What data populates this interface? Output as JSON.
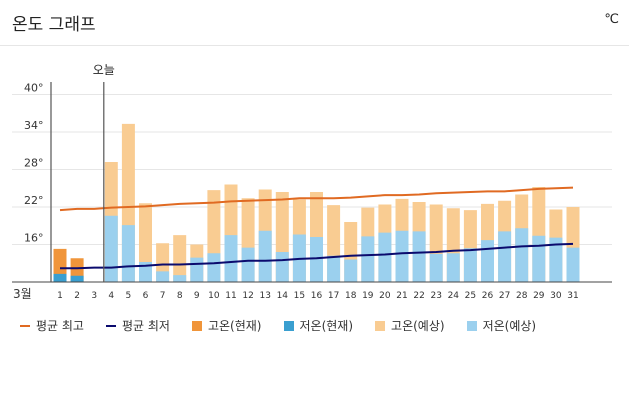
{
  "header": {
    "title": "온도 그래프",
    "unit": "℃"
  },
  "colors": {
    "avg_high": "#e06a22",
    "avg_low": "#0b0b6e",
    "high_current": "#f0953a",
    "low_current": "#3a9fd0",
    "high_forecast": "#f9cc92",
    "low_forecast": "#9bd0ee"
  },
  "chart_data": {
    "type": "bar",
    "title": "온도 그래프",
    "unit": "℃",
    "month_label": "3월",
    "today_label": "오늘",
    "today_index": 3,
    "ylim": [
      10,
      42
    ],
    "y_ticks": [
      16,
      22,
      28,
      34,
      40
    ],
    "y_tick_labels": [
      "16°",
      "22°",
      "28°",
      "34°",
      "40°"
    ],
    "categories": [
      "1",
      "2",
      "3",
      "4",
      "5",
      "6",
      "7",
      "8",
      "9",
      "10",
      "11",
      "12",
      "13",
      "14",
      "15",
      "16",
      "17",
      "18",
      "19",
      "20",
      "21",
      "22",
      "23",
      "24",
      "25",
      "26",
      "27",
      "28",
      "29",
      "30",
      "31"
    ],
    "series": [
      {
        "name": "고온(현재)",
        "kind": "high_current",
        "values": [
          15.3,
          13.8,
          null,
          null,
          null,
          null,
          null,
          null,
          null,
          null,
          null,
          null,
          null,
          null,
          null,
          null,
          null,
          null,
          null,
          null,
          null,
          null,
          null,
          null,
          null,
          null,
          null,
          null,
          null,
          null,
          null
        ]
      },
      {
        "name": "저온(현재)",
        "kind": "low_current",
        "values": [
          11.3,
          11.0,
          null,
          null,
          null,
          null,
          null,
          null,
          null,
          null,
          null,
          null,
          null,
          null,
          null,
          null,
          null,
          null,
          null,
          null,
          null,
          null,
          null,
          null,
          null,
          null,
          null,
          null,
          null,
          null,
          null
        ]
      },
      {
        "name": "고온(예상)",
        "kind": "high_forecast",
        "values": [
          null,
          null,
          null,
          29.2,
          35.3,
          22.6,
          16.2,
          17.5,
          16.0,
          24.7,
          25.6,
          23.4,
          24.8,
          24.4,
          23.2,
          24.4,
          22.3,
          19.6,
          21.9,
          22.4,
          23.3,
          22.8,
          22.4,
          21.8,
          21.5,
          22.5,
          23.0,
          24.0,
          25.2,
          21.6,
          22.0
        ]
      },
      {
        "name": "저온(예상)",
        "kind": "low_forecast",
        "values": [
          null,
          null,
          null,
          20.6,
          19.1,
          13.2,
          11.7,
          11.1,
          13.9,
          14.6,
          17.5,
          15.5,
          18.2,
          14.8,
          17.6,
          17.2,
          14.2,
          13.6,
          17.3,
          17.9,
          18.2,
          18.1,
          14.5,
          14.6,
          15.4,
          16.7,
          18.1,
          18.6,
          17.4,
          17.1,
          15.5
        ]
      },
      {
        "name": "평균 최고",
        "kind": "avg_high",
        "values": [
          21.5,
          21.7,
          21.7,
          21.9,
          22.0,
          22.1,
          22.3,
          22.5,
          22.6,
          22.7,
          22.9,
          23.0,
          23.1,
          23.2,
          23.4,
          23.4,
          23.4,
          23.5,
          23.7,
          23.9,
          23.9,
          24.0,
          24.2,
          24.3,
          24.4,
          24.5,
          24.5,
          24.7,
          24.9,
          25.0,
          25.1
        ]
      },
      {
        "name": "평균 최저",
        "kind": "avg_low",
        "values": [
          12.2,
          12.2,
          12.3,
          12.3,
          12.5,
          12.6,
          12.8,
          12.8,
          12.9,
          13.0,
          13.2,
          13.4,
          13.4,
          13.5,
          13.7,
          13.8,
          14.0,
          14.2,
          14.3,
          14.4,
          14.6,
          14.7,
          14.8,
          15.0,
          15.1,
          15.3,
          15.5,
          15.7,
          15.8,
          16.0,
          16.1
        ]
      }
    ],
    "legend": [
      {
        "label": "평균 최고",
        "kind": "avg_high",
        "shape": "line"
      },
      {
        "label": "평균 최저",
        "kind": "avg_low",
        "shape": "line"
      },
      {
        "label": "고온(현재)",
        "kind": "high_current",
        "shape": "box"
      },
      {
        "label": "저온(현재)",
        "kind": "low_current",
        "shape": "box"
      },
      {
        "label": "고온(예상)",
        "kind": "high_forecast",
        "shape": "box"
      },
      {
        "label": "저온(예상)",
        "kind": "low_forecast",
        "shape": "box"
      }
    ]
  }
}
